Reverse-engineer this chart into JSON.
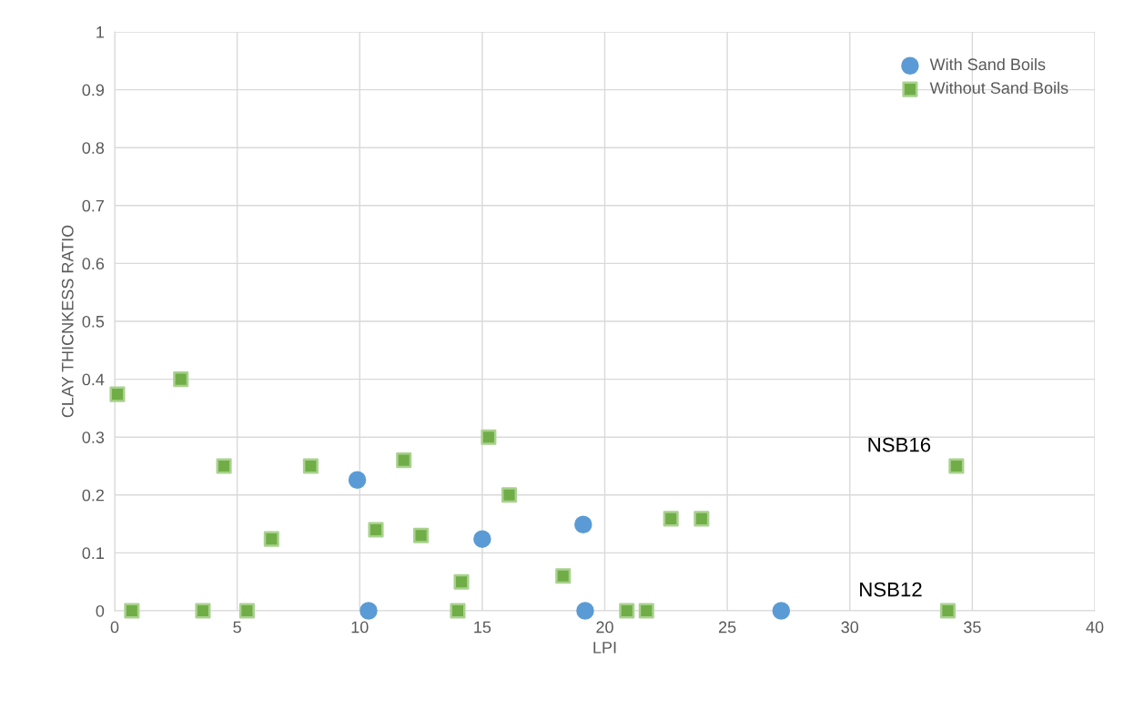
{
  "chart_data": {
    "type": "scatter",
    "xlabel": "LPI",
    "ylabel": "CLAY THICNKESS RATIO",
    "series": [
      {
        "name": "With Sand Boils",
        "color": "#5b9bd5",
        "marker": "circle",
        "x": [
          9.9,
          10.36,
          15.0,
          19.12,
          19.2,
          27.2
        ],
        "values": [
          0.226,
          0,
          0.124,
          0.149,
          0,
          0
        ]
      },
      {
        "name": "Without Sand Boils",
        "color": "#70ad47",
        "marker": "square",
        "x": [
          0.11,
          0.7,
          2.7,
          3.6,
          4.46,
          5.4,
          6.4,
          8.0,
          10.66,
          11.8,
          12.5,
          14.0,
          14.15,
          15.26,
          16.1,
          18.3,
          20.9,
          21.7,
          22.7,
          23.95,
          34.0,
          34.35
        ],
        "values": [
          0.374,
          0,
          0.4,
          0,
          0.25,
          0,
          0.124,
          0.25,
          0.14,
          0.26,
          0.13,
          0,
          0.05,
          0.3,
          0.2,
          0.06,
          0,
          0,
          0.159,
          0.159,
          0,
          0.25
        ]
      }
    ],
    "xlim": [
      0,
      40
    ],
    "xticks": [
      0,
      5,
      10,
      15,
      20,
      25,
      30,
      35,
      40
    ],
    "ylim": [
      0,
      1
    ],
    "yticks": [
      0,
      0.1,
      0.2,
      0.3,
      0.4,
      0.5,
      0.6,
      0.7,
      0.8,
      0.9,
      1
    ],
    "grid": true,
    "legend": "top right",
    "annotations": [
      {
        "text": "NSB16",
        "x": 34.35,
        "y": 0.25
      },
      {
        "text": "NSB12",
        "x": 34.0,
        "y": 0
      }
    ]
  }
}
